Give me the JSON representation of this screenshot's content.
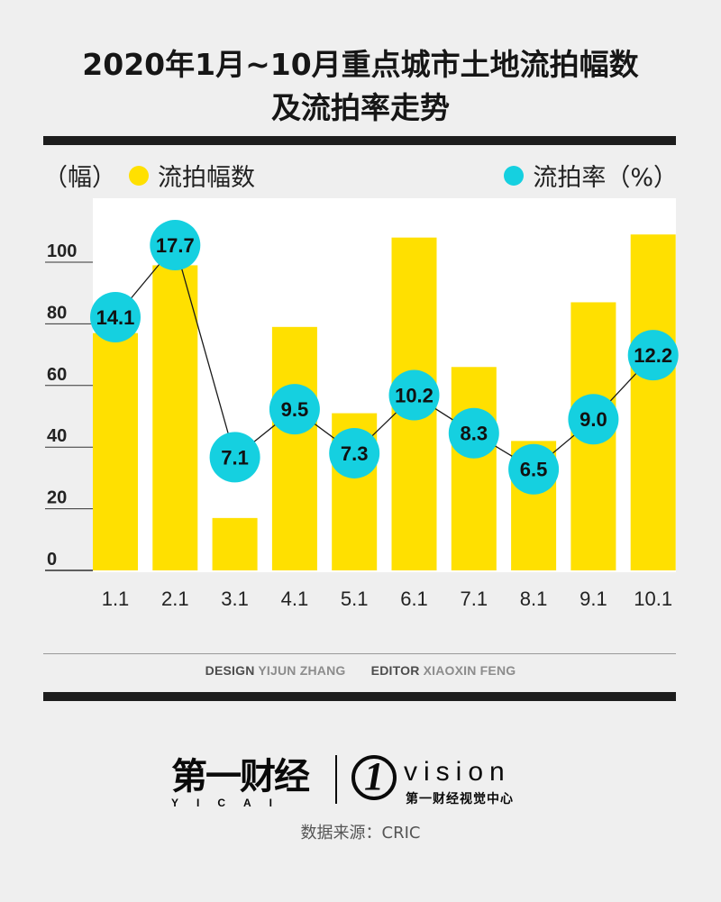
{
  "title_line1": "2020年1月~10月重点城市土地流拍幅数",
  "title_line2": "及流拍率走势",
  "legend": {
    "left_unit": "（幅）",
    "left_label": "流拍幅数",
    "right_label": "流拍率（%）"
  },
  "colors": {
    "bar": "#ffe000",
    "rate": "#15d0e0",
    "line": "#1a1a1a"
  },
  "chart_data": {
    "type": "bar",
    "categories": [
      "1.1",
      "2.1",
      "3.1",
      "4.1",
      "5.1",
      "6.1",
      "7.1",
      "8.1",
      "9.1",
      "10.1"
    ],
    "y_ticks": [
      "0",
      "20",
      "40",
      "60",
      "80",
      "100"
    ],
    "ylim": [
      0,
      110
    ],
    "series": [
      {
        "name": "流拍幅数",
        "type": "bar",
        "values": [
          77,
          99,
          17,
          79,
          51,
          108,
          66,
          42,
          87,
          109
        ]
      },
      {
        "name": "流拍率（%）",
        "type": "line",
        "values": [
          14.1,
          17.7,
          7.1,
          9.5,
          7.3,
          10.2,
          8.3,
          6.5,
          9.0,
          12.2
        ],
        "labels": [
          "14.1",
          "17.7",
          "7.1",
          "9.5",
          "7.3",
          "10.2",
          "8.3",
          "6.5",
          "9.0",
          "12.2"
        ]
      }
    ],
    "grid": false
  },
  "credits": {
    "design_label": "DESIGN",
    "design_name": "YIJUN ZHANG",
    "editor_label": "EDITOR",
    "editor_name": "XIAOXIN FENG"
  },
  "logo": {
    "left_cn": "第一财经",
    "left_en": "YICAI",
    "right_mark": "1",
    "right_text": "vision",
    "right_sub": "第一财经视觉中心"
  },
  "source": "数据来源：CRIC"
}
